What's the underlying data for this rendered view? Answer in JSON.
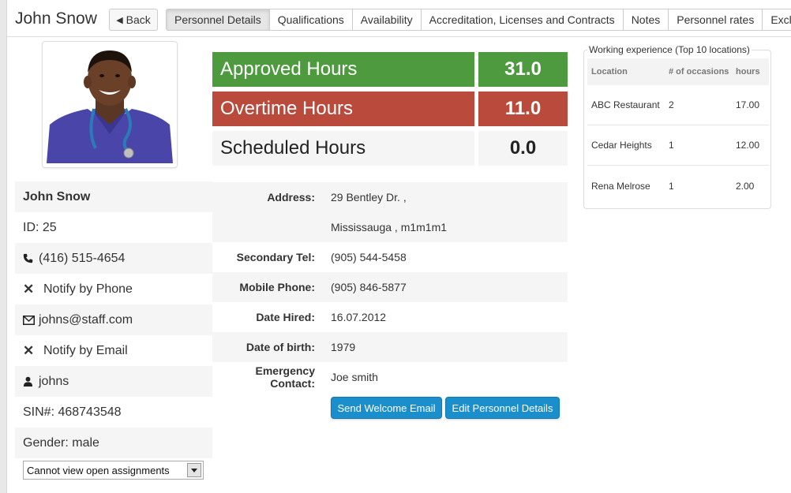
{
  "header": {
    "title": "John Snow",
    "back_label": "Back",
    "tabs": [
      {
        "label": "Personnel Details",
        "active": true
      },
      {
        "label": "Qualifications"
      },
      {
        "label": "Availability"
      },
      {
        "label": "Accreditation, Licenses and Contracts"
      },
      {
        "label": "Notes"
      },
      {
        "label": "Personnel rates"
      },
      {
        "label": "Exclude"
      }
    ]
  },
  "hours": {
    "approved_label": "Approved Hours",
    "approved_value": "31.0",
    "overtime_label": "Overtime Hours",
    "overtime_value": "11.0",
    "scheduled_label": "Scheduled Hours",
    "scheduled_value": "0.0",
    "colors": {
      "approved": "#4e9a3e",
      "overtime": "#b94a3c"
    }
  },
  "work_experience": {
    "legend": "Working experience (Top 10 locations)",
    "headers": [
      "Location",
      "# of occasions",
      "hours"
    ],
    "rows": [
      {
        "location": "ABC Restaurant",
        "occasions": "2",
        "hours": "17.00"
      },
      {
        "location": "Cedar Heights",
        "occasions": "1",
        "hours": "12.00"
      },
      {
        "location": "Rena Melrose",
        "occasions": "1",
        "hours": "2.00"
      }
    ]
  },
  "person": {
    "name": "John Snow",
    "id": "ID: 25",
    "phone": "(416) 515-4654",
    "notify_phone": "Notify by Phone",
    "email": "johns@staff.com",
    "notify_email": "Notify by Email",
    "username": "johns",
    "sin": "SIN#: 468743548",
    "gender": "Gender: male",
    "assignments_select": "Cannot view open assignments"
  },
  "details": {
    "address_label": "Address:",
    "address_line1": "29 Bentley Dr. ,",
    "address_line2": "Mississauga , m1m1m1",
    "secondary_tel_label": "Secondary Tel:",
    "secondary_tel": "(905) 544-5458",
    "mobile_label": "Mobile Phone:",
    "mobile": "(905) 846-5877",
    "date_hired_label": "Date Hired:",
    "date_hired": "16.07.2012",
    "dob_label": "Date of birth:",
    "dob": "1979",
    "emergency_label": "Emergency Contact:",
    "emergency": "Joe smith"
  },
  "actions": {
    "send_welcome": "Send Welcome Email",
    "edit_details": "Edit Personnel Details"
  },
  "icons": {
    "back": "chevron-left-icon",
    "phone": "phone-icon",
    "notify": "x-icon",
    "email": "envelope-icon",
    "user": "user-icon",
    "dropdown": "triangle-down-icon"
  }
}
